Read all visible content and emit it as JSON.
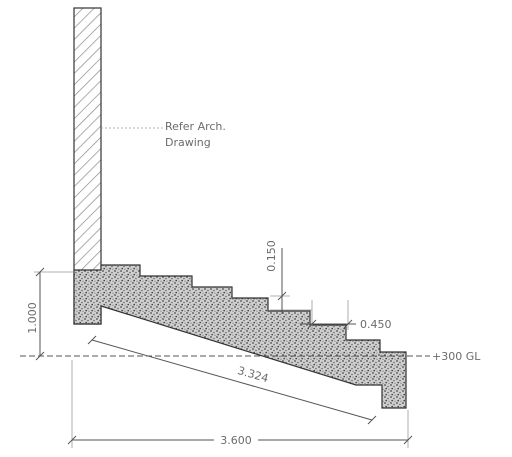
{
  "drawing": {
    "note_line1": "Refer Arch.",
    "note_line2": "Drawing",
    "dim_height": "1.000",
    "dim_riser": "0.150",
    "dim_tread": "0.450",
    "dim_slope": "3.324",
    "dim_span": "3.600",
    "level": "+300 GL"
  },
  "colors": {
    "hatch": "#8a8a8a",
    "concrete_fill": "#c9c9c9",
    "concrete_dots": "#555555",
    "lines": "#333333"
  }
}
